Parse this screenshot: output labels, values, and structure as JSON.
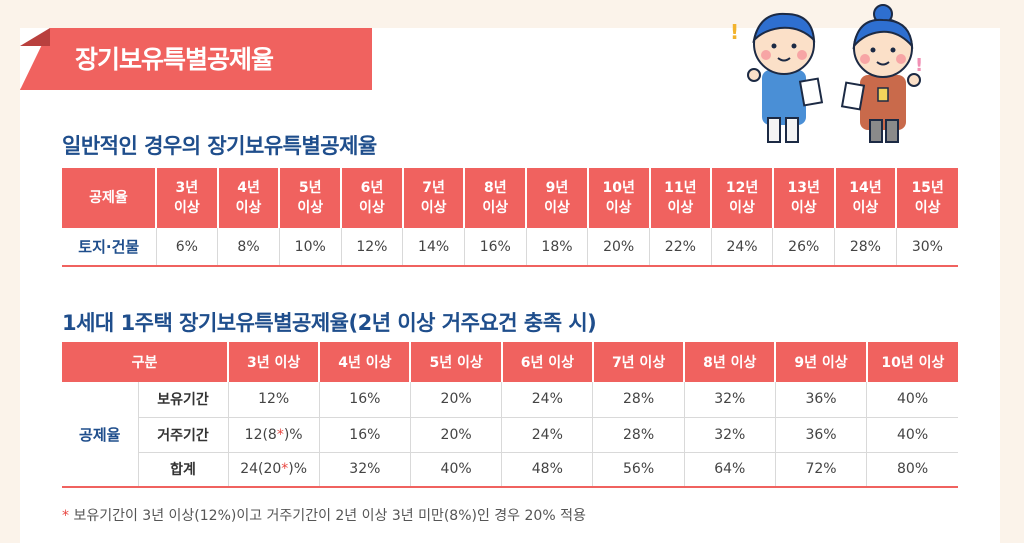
{
  "banner": {
    "title": "장기보유특별공제율"
  },
  "section1": {
    "title": "일반적인 경우의 장기보유특별공제율",
    "header_label": "공제율",
    "periods": [
      [
        "3년",
        "이상"
      ],
      [
        "4년",
        "이상"
      ],
      [
        "5년",
        "이상"
      ],
      [
        "6년",
        "이상"
      ],
      [
        "7년",
        "이상"
      ],
      [
        "8년",
        "이상"
      ],
      [
        "9년",
        "이상"
      ],
      [
        "10년",
        "이상"
      ],
      [
        "11년",
        "이상"
      ],
      [
        "12년",
        "이상"
      ],
      [
        "13년",
        "이상"
      ],
      [
        "14년",
        "이상"
      ],
      [
        "15년",
        "이상"
      ]
    ],
    "row_label": "토지·건물",
    "values": [
      "6%",
      "8%",
      "10%",
      "12%",
      "14%",
      "16%",
      "18%",
      "20%",
      "22%",
      "24%",
      "26%",
      "28%",
      "30%"
    ]
  },
  "section2": {
    "title": "1세대 1주택 장기보유특별공제율(2년 이상 거주요건 충족 시)",
    "header_label": "구분",
    "periods": [
      "3년 이상",
      "4년 이상",
      "5년 이상",
      "6년 이상",
      "7년 이상",
      "8년 이상",
      "9년 이상",
      "10년 이상"
    ],
    "group_label": "공제율",
    "rows": [
      {
        "label": "보유기간",
        "first": {
          "pre": "12%",
          "mark": "",
          "post": ""
        },
        "values": [
          "16%",
          "20%",
          "24%",
          "28%",
          "32%",
          "36%",
          "40%"
        ]
      },
      {
        "label": "거주기간",
        "first": {
          "pre": "12(8",
          "mark": "*",
          "post": ")%"
        },
        "values": [
          "16%",
          "20%",
          "24%",
          "28%",
          "32%",
          "36%",
          "40%"
        ]
      },
      {
        "label": "합계",
        "first": {
          "pre": "24(20",
          "mark": "*",
          "post": ")%"
        },
        "values": [
          "32%",
          "40%",
          "48%",
          "56%",
          "64%",
          "72%",
          "80%"
        ]
      }
    ]
  },
  "footnote": {
    "mark": "*",
    "text": " 보유기간이 3년 이상(12%)이고 거주기간이 2년 이상 3년 미만(8%)인 경우 20% 적용"
  },
  "decor": {
    "excl1": "!",
    "excl2": "!"
  },
  "colors": {
    "accent": "#f0625f",
    "title_blue": "#1f4e8c",
    "background": "#fbf3ea"
  }
}
